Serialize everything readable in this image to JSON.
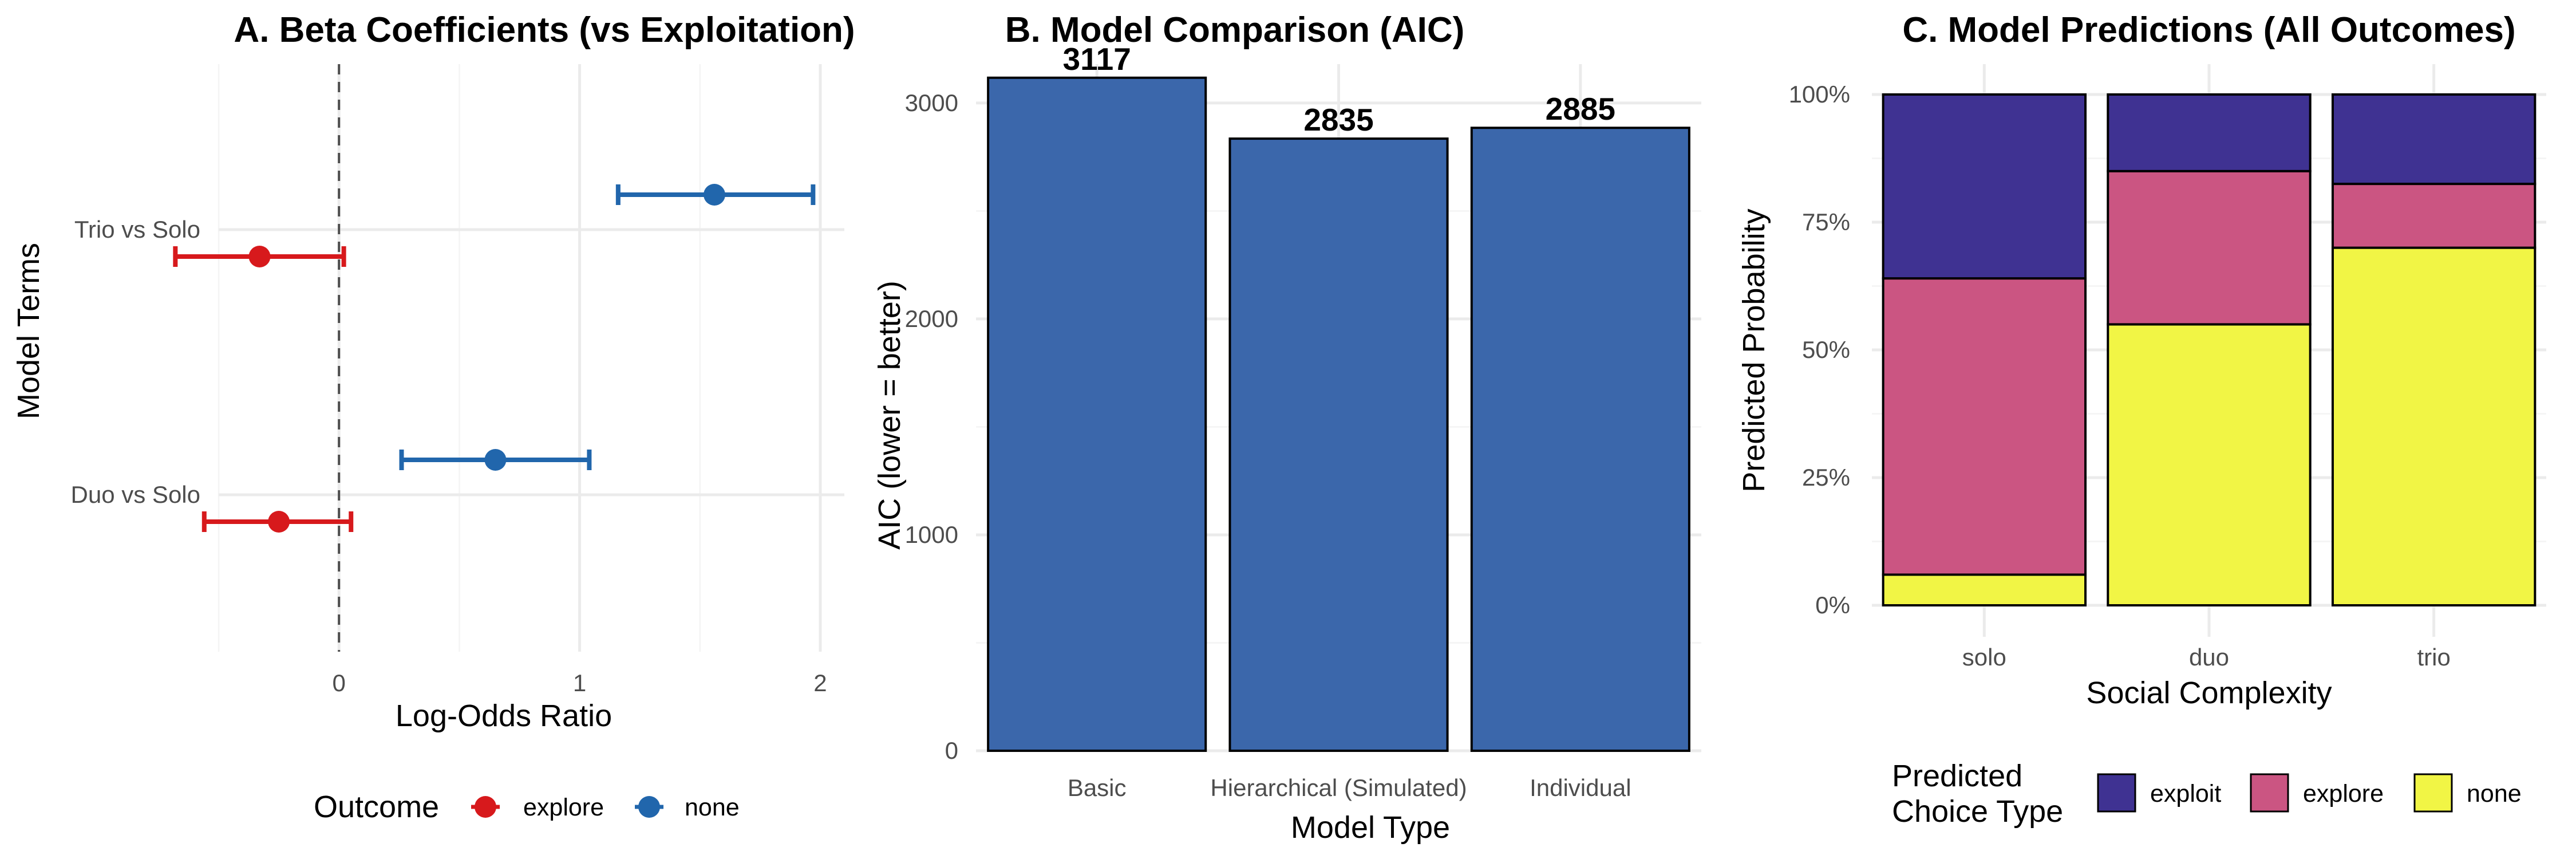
{
  "panelA": {
    "title": "A. Beta Coefficients (vs Exploitation)",
    "xlabel": "Log-Odds Ratio",
    "ylabel": "Model Terms",
    "legend_title": "Outcome",
    "colors": {
      "explore": "#d7191c",
      "none": "#2166ac",
      "refline": "#4d4d4d"
    },
    "chart_data": {
      "type": "scatter",
      "subtype": "coefficient point-range plot",
      "categories": [
        "Duo vs Solo",
        "Trio vs Solo"
      ],
      "xlim": [
        -0.5,
        2.1
      ],
      "xticks": [
        0,
        1,
        2
      ],
      "reference_line": 0,
      "grid": true,
      "legend_position": "bottom",
      "series": [
        {
          "name": "explore",
          "estimate": [
            -0.25,
            -0.33
          ],
          "lower": [
            -0.56,
            -0.68
          ],
          "upper": [
            0.05,
            0.02
          ]
        },
        {
          "name": "none",
          "estimate": [
            0.65,
            1.56
          ],
          "lower": [
            0.26,
            1.16
          ],
          "upper": [
            1.04,
            1.97
          ]
        }
      ]
    }
  },
  "panelB": {
    "title": "B. Model Comparison (AIC)",
    "xlabel": "Model Type",
    "ylabel": "AIC (lower = better)",
    "colors": {
      "bar": "#3b67ab",
      "outline": "#000000"
    },
    "chart_data": {
      "type": "bar",
      "categories": [
        "Basic",
        "Hierarchical (Simulated)",
        "Individual"
      ],
      "values": [
        3117,
        2835,
        2885
      ],
      "data_labels": [
        "3117",
        "2835",
        "2885"
      ],
      "ylim": [
        0,
        3180
      ],
      "yticks": [
        0,
        1000,
        2000,
        3000
      ],
      "grid": true
    }
  },
  "panelC": {
    "title": "C. Model Predictions (All Outcomes)",
    "xlabel": "Social Complexity",
    "ylabel": "Predicted Probability",
    "legend_title_lines": [
      "Predicted",
      "Choice Type"
    ],
    "colors": {
      "exploit": "#3f3292",
      "explore": "#cb5582",
      "none": "#f1f545"
    },
    "chart_data": {
      "type": "bar",
      "subtype": "stacked proportion",
      "categories": [
        "solo",
        "duo",
        "trio"
      ],
      "ylim": [
        0,
        1
      ],
      "yticks": [
        "0%",
        "25%",
        "50%",
        "75%",
        "100%"
      ],
      "grid": true,
      "legend_position": "bottom",
      "series": [
        {
          "name": "none",
          "values": [
            0.06,
            0.55,
            0.7
          ]
        },
        {
          "name": "explore",
          "values": [
            0.58,
            0.3,
            0.125
          ]
        },
        {
          "name": "exploit",
          "values": [
            0.36,
            0.15,
            0.175
          ]
        }
      ]
    }
  }
}
